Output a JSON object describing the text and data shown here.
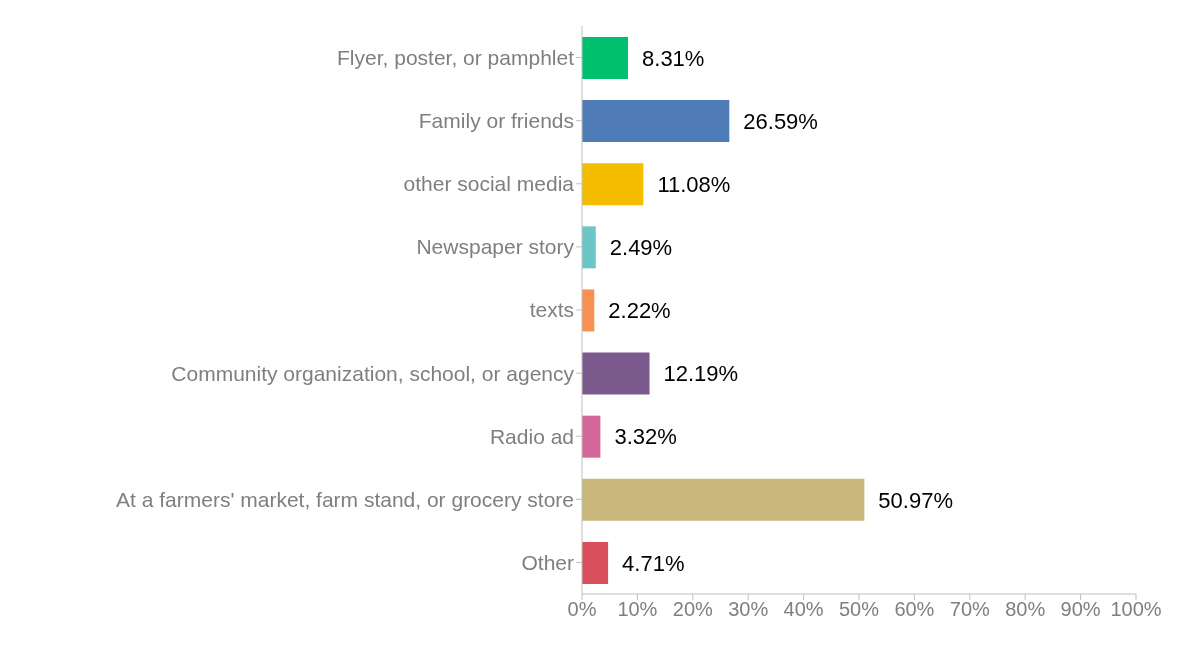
{
  "chart_data": {
    "type": "bar",
    "orientation": "horizontal",
    "categories": [
      "Flyer, poster, or pamphlet",
      "Family or friends",
      "other social media",
      "Newspaper story",
      "texts",
      "Community organization, school, or agency",
      "Radio ad",
      "At a farmers' market, farm stand, or grocery store",
      "Other"
    ],
    "values": [
      8.31,
      26.59,
      11.08,
      2.49,
      2.22,
      12.19,
      3.32,
      50.97,
      4.71
    ],
    "value_labels": [
      "8.31%",
      "26.59%",
      "11.08%",
      "2.49%",
      "2.22%",
      "12.19%",
      "3.32%",
      "50.97%",
      "4.71%"
    ],
    "colors": [
      "#00bf6f",
      "#4f7bb7",
      "#f5bd00",
      "#6cc6c9",
      "#f79052",
      "#7b5b8e",
      "#d4679a",
      "#c8b67a",
      "#d84f5b"
    ],
    "xlim": [
      0,
      100
    ],
    "xticks": [
      {
        "value": 0,
        "label": "0%"
      },
      {
        "value": 10,
        "label": "10%"
      },
      {
        "value": 20,
        "label": "20%"
      },
      {
        "value": 30,
        "label": "30%"
      },
      {
        "value": 40,
        "label": "40%"
      },
      {
        "value": 50,
        "label": "50%"
      },
      {
        "value": 60,
        "label": "60%"
      },
      {
        "value": 70,
        "label": "70%"
      },
      {
        "value": 80,
        "label": "80%"
      },
      {
        "value": 90,
        "label": "90%"
      },
      {
        "value": 100,
        "label": "100%"
      }
    ],
    "grid": false
  }
}
